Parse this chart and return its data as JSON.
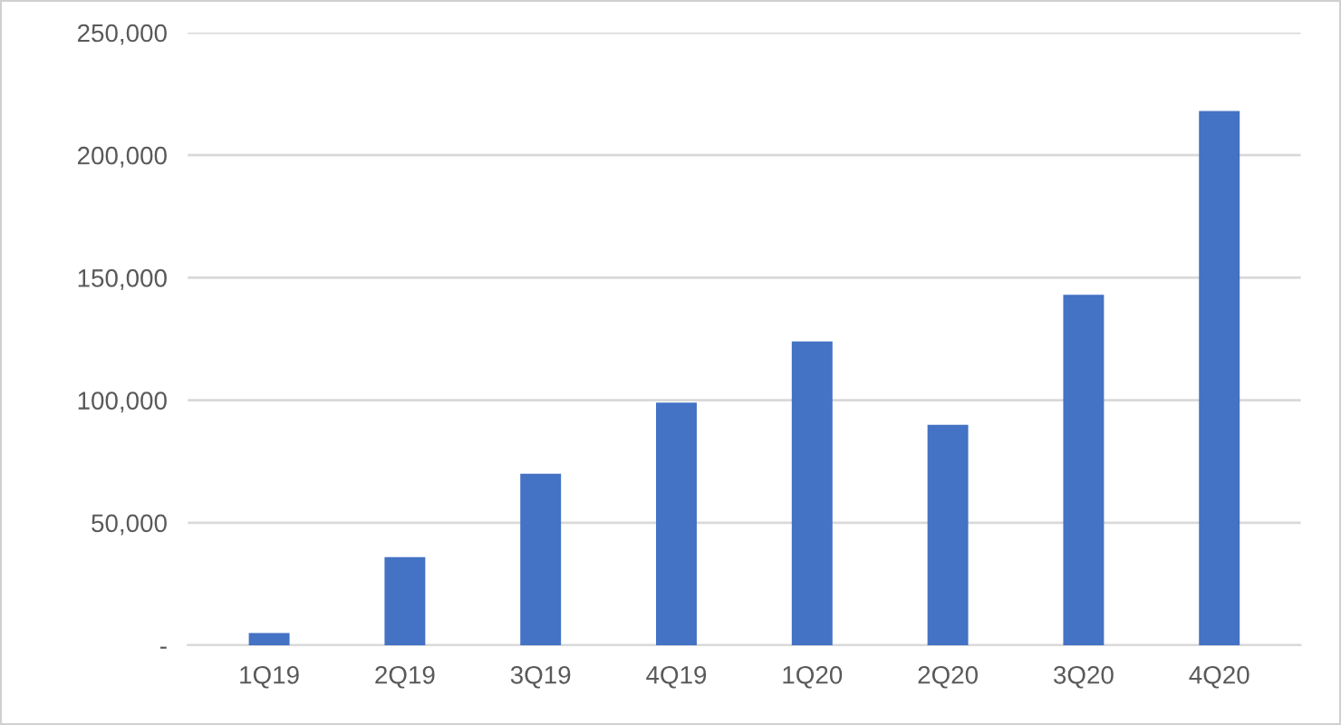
{
  "chart_data": {
    "type": "bar",
    "categories": [
      "1Q19",
      "2Q19",
      "3Q19",
      "4Q19",
      "1Q20",
      "2Q20",
      "3Q20",
      "4Q20"
    ],
    "values": [
      5000,
      36000,
      70000,
      99000,
      124000,
      90000,
      143000,
      218000
    ],
    "color": "#4472c4",
    "ylim": [
      0,
      250000
    ],
    "yticks": [
      {
        "value": 0,
        "label": "-"
      },
      {
        "value": 50000,
        "label": "50,000"
      },
      {
        "value": 100000,
        "label": "100,000"
      },
      {
        "value": 150000,
        "label": "150,000"
      },
      {
        "value": 200000,
        "label": "200,000"
      },
      {
        "value": 250000,
        "label": "250,000"
      }
    ],
    "grid": "y",
    "legend": false
  }
}
